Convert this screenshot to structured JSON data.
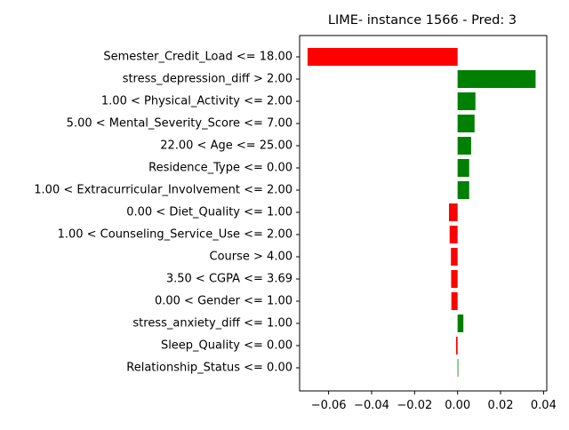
{
  "chart_data": {
    "type": "bar",
    "orientation": "horizontal",
    "title": "LIME- instance 1566 - Pred: 3",
    "xlabel": "",
    "ylabel": "",
    "xlim": [
      -0.0735,
      0.0415
    ],
    "xticks": [
      -0.06,
      -0.04,
      -0.02,
      0.0,
      0.02,
      0.04
    ],
    "xtick_labels": [
      "−0.06",
      "−0.04",
      "−0.02",
      "0.00",
      "0.02",
      "0.04"
    ],
    "grid": false,
    "legend": "none",
    "colors": {
      "positive": "#008000",
      "negative": "#ff0000",
      "axis": "#000000"
    },
    "categories": [
      "Semester_Credit_Load <= 18.00",
      "stress_depression_diff > 2.00",
      "1.00 < Physical_Activity <= 2.00",
      "5.00 < Mental_Severity_Score <= 7.00",
      "22.00 < Age <= 25.00",
      "Residence_Type <= 0.00",
      "1.00 < Extracurricular_Involvement <= 2.00",
      "0.00 < Diet_Quality <= 1.00",
      "1.00 < Counseling_Service_Use <= 2.00",
      "Course > 4.00",
      "3.50 < CGPA <= 3.69",
      "0.00 < Gender <= 1.00",
      "stress_anxiety_diff <= 1.00",
      "Sleep_Quality <= 0.00",
      "Relationship_Status <= 0.00"
    ],
    "values": [
      -0.0698,
      0.0363,
      0.0083,
      0.0079,
      0.0063,
      0.0054,
      0.0054,
      -0.004,
      -0.0037,
      -0.0031,
      -0.003,
      -0.0029,
      0.0027,
      -0.0007,
      0.0003
    ]
  }
}
